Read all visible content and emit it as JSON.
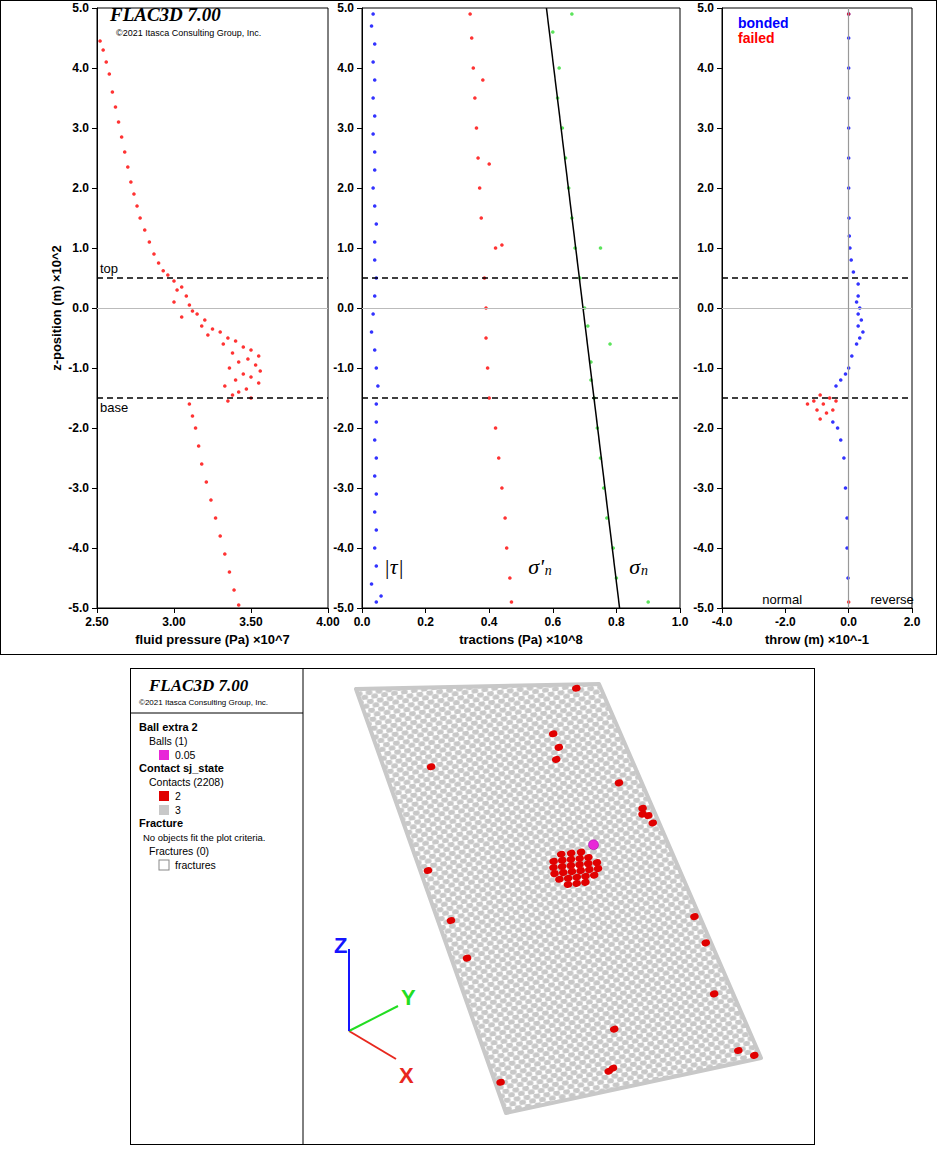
{
  "header": {
    "title": "FLAC3D 7.00",
    "copyright": "©2021 Itasca Consulting Group, Inc."
  },
  "chart_data": [
    {
      "type": "scatter",
      "xlabel": "fluid pressure (Pa) ×10^7",
      "ylabel": "z-position (m) ×10^2",
      "xlim": [
        2.5,
        4.0
      ],
      "xticks": [
        {
          "value": 2.5,
          "label": "2.50"
        },
        {
          "value": 3.0,
          "label": "3.00"
        },
        {
          "value": 3.5,
          "label": "3.50"
        },
        {
          "value": 4.0,
          "label": "4.00"
        }
      ],
      "ylim": [
        -5,
        5
      ],
      "yticks": [
        {
          "value": -5,
          "label": "-5.0"
        },
        {
          "value": -4,
          "label": "-4.0"
        },
        {
          "value": -3,
          "label": "-3.0"
        },
        {
          "value": -2,
          "label": "-2.0"
        },
        {
          "value": -1,
          "label": "-1.0"
        },
        {
          "value": 0,
          "label": "0.0"
        },
        {
          "value": 1,
          "label": "1.0"
        },
        {
          "value": 2,
          "label": "2.0"
        },
        {
          "value": 3,
          "label": "3.0"
        },
        {
          "value": 4,
          "label": "4.0"
        },
        {
          "value": 5,
          "label": "5.0"
        }
      ],
      "grid": false,
      "markers": [
        {
          "value": 0.5,
          "label": "top"
        },
        {
          "value": -1.5,
          "label": "base"
        }
      ],
      "hlines": [
        0
      ],
      "series": [
        {
          "color": "#ff0000",
          "marker": "circle",
          "x": [
            2.52,
            2.54,
            2.56,
            2.58,
            2.6,
            2.62,
            2.64,
            2.66,
            2.68,
            2.7,
            2.72,
            2.74,
            2.76,
            2.78,
            2.81,
            2.84,
            2.87,
            2.9,
            2.93,
            2.96,
            3.0,
            3.02,
            3.05,
            3.08,
            3.0,
            3.1,
            3.12,
            3.15,
            3.05,
            3.2,
            3.18,
            3.25,
            3.3,
            3.22,
            3.35,
            3.4,
            3.32,
            3.45,
            3.5,
            3.38,
            3.55,
            3.48,
            3.42,
            3.53,
            3.36,
            3.56,
            3.45,
            3.5,
            3.4,
            3.55,
            3.33,
            3.47,
            3.42,
            3.38,
            3.5,
            3.35,
            3.1,
            3.12,
            3.14,
            3.16,
            3.18,
            3.21,
            3.24,
            3.27,
            3.3,
            3.33,
            3.36,
            3.39,
            3.42
          ],
          "values": [
            4.45,
            4.3,
            4.1,
            3.9,
            3.6,
            3.35,
            3.1,
            2.85,
            2.6,
            2.35,
            2.1,
            1.9,
            1.7,
            1.5,
            1.3,
            1.1,
            0.9,
            0.75,
            0.62,
            0.55,
            0.45,
            0.3,
            0.35,
            0.2,
            0.1,
            0.05,
            -0.05,
            -0.1,
            -0.15,
            -0.2,
            -0.3,
            -0.35,
            -0.4,
            -0.45,
            -0.5,
            -0.55,
            -0.6,
            -0.65,
            -0.7,
            -0.75,
            -0.8,
            -0.85,
            -0.9,
            -0.95,
            -1.0,
            -1.05,
            -1.1,
            -1.15,
            -1.2,
            -1.25,
            -1.3,
            -1.35,
            -1.4,
            -1.45,
            -1.5,
            -1.55,
            -1.6,
            -1.8,
            -2.0,
            -2.3,
            -2.6,
            -2.9,
            -3.2,
            -3.5,
            -3.8,
            -4.1,
            -4.4,
            -4.7,
            -4.95
          ]
        }
      ]
    },
    {
      "type": "scatter",
      "xlabel": "tractions (Pa) ×10^8",
      "xlim": [
        0,
        1.0
      ],
      "xticks": [
        {
          "value": 0,
          "label": "0.0"
        },
        {
          "value": 0.2,
          "label": "0.2"
        },
        {
          "value": 0.4,
          "label": "0.4"
        },
        {
          "value": 0.6,
          "label": "0.6"
        },
        {
          "value": 0.8,
          "label": "0.8"
        },
        {
          "value": 1.0,
          "label": "1.0"
        }
      ],
      "ylim": [
        -5,
        5
      ],
      "yticks": [
        {
          "value": -5,
          "label": "-5.0"
        },
        {
          "value": -4,
          "label": "-4.0"
        },
        {
          "value": -3,
          "label": "-3.0"
        },
        {
          "value": -2,
          "label": "-2.0"
        },
        {
          "value": -1,
          "label": "-1.0"
        },
        {
          "value": 0,
          "label": "0.0"
        },
        {
          "value": 1,
          "label": "1.0"
        },
        {
          "value": 2,
          "label": "2.0"
        },
        {
          "value": 3,
          "label": "3.0"
        },
        {
          "value": 4,
          "label": "4.0"
        },
        {
          "value": 5,
          "label": "5.0"
        }
      ],
      "grid": false,
      "markers": [
        {
          "value": 0.5
        },
        {
          "value": -1.5
        }
      ],
      "hlines": [
        0
      ],
      "annotations": [
        {
          "text": "|τ|",
          "x": 0.1,
          "y": -4.3
        },
        {
          "text": "σ'",
          "subscript": "n",
          "x": 0.56,
          "y": -4.3
        },
        {
          "text": "σ",
          "subscript": "n",
          "x": 0.87,
          "y": -4.3
        }
      ],
      "series": [
        {
          "color": "#0000ff",
          "marker": "circle",
          "x": [
            0.035,
            0.03,
            0.04,
            0.035,
            0.04,
            0.035,
            0.04,
            0.035,
            0.04,
            0.04,
            0.035,
            0.04,
            0.045,
            0.04,
            0.04,
            0.045,
            0.04,
            0.035,
            0.03,
            0.04,
            0.045,
            0.05,
            0.045,
            0.045,
            0.04,
            0.045,
            0.04,
            0.045,
            0.04,
            0.045,
            0.04,
            0.045,
            0.03,
            0.06,
            0.045
          ],
          "values": [
            4.9,
            4.7,
            4.4,
            4.1,
            3.8,
            3.5,
            3.2,
            2.9,
            2.6,
            2.3,
            2.0,
            1.7,
            1.4,
            1.1,
            0.8,
            0.5,
            0.2,
            -0.1,
            -0.4,
            -0.7,
            -1.0,
            -1.3,
            -1.6,
            -1.9,
            -2.2,
            -2.5,
            -2.8,
            -3.1,
            -3.4,
            -3.7,
            -4.0,
            -4.3,
            -4.6,
            -4.8,
            -4.9
          ]
        },
        {
          "color": "#ff0000",
          "marker": "circle",
          "x": [
            0.34,
            0.345,
            0.35,
            0.38,
            0.355,
            0.36,
            0.365,
            0.4,
            0.37,
            0.375,
            0.44,
            0.42,
            0.385,
            0.39,
            0.39,
            0.395,
            0.4,
            0.42,
            0.43,
            0.44,
            0.45,
            0.455,
            0.465,
            0.47
          ],
          "values": [
            4.9,
            4.5,
            4.0,
            3.8,
            3.5,
            3.0,
            2.5,
            2.4,
            2.0,
            1.5,
            1.05,
            1.0,
            0.5,
            0.0,
            -0.5,
            -1.0,
            -1.5,
            -2.0,
            -2.5,
            -3.0,
            -3.5,
            -4.0,
            -4.5,
            -4.9
          ]
        },
        {
          "color": "#33dd33",
          "marker": "circle",
          "x": [
            0.66,
            0.6,
            0.62,
            0.615,
            0.63,
            0.64,
            0.65,
            0.66,
            0.75,
            0.67,
            0.685,
            0.7,
            0.71,
            0.78,
            0.72,
            0.72,
            0.73,
            0.74,
            0.75,
            0.76,
            0.77,
            0.79,
            0.8,
            0.9
          ],
          "values": [
            4.9,
            4.6,
            4.0,
            3.5,
            3.0,
            2.5,
            2.0,
            1.5,
            1.0,
            1.0,
            0.5,
            0.0,
            -0.3,
            -0.6,
            -0.9,
            -1.2,
            -1.5,
            -2.0,
            -2.5,
            -3.0,
            -3.5,
            -4.0,
            -4.5,
            -4.9
          ]
        },
        {
          "type": "line",
          "color": "#000000",
          "line_style": "solid",
          "x": [
            0.58,
            0.81
          ],
          "values": [
            5,
            -5
          ]
        }
      ]
    },
    {
      "type": "scatter",
      "xlabel": "throw (m) ×10^-1",
      "xlim": [
        -4.0,
        2.0
      ],
      "xticks": [
        {
          "value": -4,
          "label": "-4.0"
        },
        {
          "value": -2,
          "label": "-2.0"
        },
        {
          "value": 0,
          "label": "0.0"
        },
        {
          "value": 2,
          "label": "2.0"
        }
      ],
      "ylim": [
        -5,
        5
      ],
      "yticks": [
        {
          "value": -5,
          "label": "-5.0"
        },
        {
          "value": -4,
          "label": "-4.0"
        },
        {
          "value": -3,
          "label": "-3.0"
        },
        {
          "value": -2,
          "label": "-2.0"
        },
        {
          "value": -1,
          "label": "-1.0"
        },
        {
          "value": 0,
          "label": "0.0"
        },
        {
          "value": 1,
          "label": "1.0"
        },
        {
          "value": 2,
          "label": "2.0"
        },
        {
          "value": 3,
          "label": "3.0"
        },
        {
          "value": 4,
          "label": "4.0"
        },
        {
          "value": 5,
          "label": "5.0"
        }
      ],
      "grid": false,
      "legend": "top-left",
      "markers": [
        {
          "value": 0.5
        },
        {
          "value": -1.5
        }
      ],
      "hlines": [
        0
      ],
      "vlines": [
        0
      ],
      "annotations": [
        {
          "text": "normal",
          "x": -2.1,
          "y": -4.85
        },
        {
          "text": "reverse",
          "x": 1.37,
          "y": -4.85
        }
      ],
      "series": [
        {
          "name": "bonded",
          "color": "#0000ff",
          "marker": "circle",
          "x": [
            0,
            0,
            0,
            0,
            0,
            0,
            0,
            0.01,
            0.02,
            0.04,
            0.08,
            0.15,
            0.3,
            0.3,
            0.25,
            0.35,
            0.3,
            0.4,
            0.3,
            0.45,
            0.35,
            0.25,
            0.1,
            0.0,
            -0.1,
            -0.25,
            -0.4,
            -0.5,
            -0.35,
            -0.25,
            -0.15,
            -0.1,
            -0.05,
            -0.05,
            -0.02
          ],
          "values": [
            4.9,
            4.5,
            4.0,
            3.5,
            3.0,
            2.5,
            2.0,
            1.5,
            1.2,
            1.0,
            0.8,
            0.6,
            0.4,
            0.2,
            0.1,
            0.0,
            -0.1,
            -0.2,
            -0.3,
            -0.4,
            -0.5,
            -0.6,
            -0.8,
            -1.0,
            -1.1,
            -1.2,
            -1.3,
            -1.9,
            -2.0,
            -2.2,
            -2.5,
            -3.0,
            -3.5,
            -4.0,
            -4.5
          ]
        },
        {
          "name": "failed",
          "color": "#ff0000",
          "marker": "circle",
          "x": [
            0,
            -0.9,
            -1.1,
            -1.3,
            -0.8,
            -0.6,
            -1.0,
            -0.7,
            -0.5,
            -0.9,
            -0.4,
            0
          ],
          "values": [
            4.9,
            -1.45,
            -1.55,
            -1.6,
            -1.6,
            -1.5,
            -1.7,
            -1.75,
            -1.7,
            -1.85,
            -1.55,
            -4.9
          ]
        }
      ]
    }
  ],
  "contact_plot": {
    "header": {
      "title": "FLAC3D 7.00",
      "copyright": "©2021 Itasca Consulting Group, Inc."
    },
    "legend": [
      {
        "title": "Ball extra 2",
        "subtitle": "Balls (1)",
        "items": [
          {
            "label": "0.05",
            "color": "#e826d8"
          }
        ]
      },
      {
        "title": "Contact sj_state",
        "subtitle": "Contacts (2208)",
        "items": [
          {
            "label": "2",
            "color": "#e00000"
          },
          {
            "label": "3",
            "color": "#c8c8c8"
          }
        ]
      },
      {
        "title": "Fracture",
        "note": "No objects fit the plot criteria.",
        "subtitle": "Fractures (0)",
        "items": [
          {
            "label": "fractures",
            "color": "#ffffff"
          }
        ]
      }
    ],
    "axes": [
      {
        "label": "X",
        "color": "#e8281e"
      },
      {
        "label": "Y",
        "color": "#22dd22"
      },
      {
        "label": "Z",
        "color": "#1515ff"
      }
    ],
    "ball": {
      "u": 0.71,
      "v": 0.41
    },
    "failed_contacts": {
      "u": [
        0.57,
        0.61,
        0.65,
        0.53,
        0.565,
        0.6,
        0.635,
        0.67,
        0.52,
        0.555,
        0.59,
        0.625,
        0.66,
        0.695,
        0.515,
        0.55,
        0.585,
        0.62,
        0.655,
        0.69,
        0.525,
        0.56,
        0.595,
        0.63,
        0.665,
        0.55,
        0.585,
        0.62,
        0.9,
        0.19,
        0.73,
        0.73,
        0.7,
        0.91,
        0.96,
        0.97,
        0.975,
        0.95,
        0.03,
        0.05,
        0.06,
        0.98,
        0.98,
        0.93,
        0.93,
        0.98,
        0.51,
        0.43,
        0.45,
        0.02
      ],
      "v": [
        0.425,
        0.425,
        0.425,
        0.44,
        0.44,
        0.44,
        0.44,
        0.44,
        0.455,
        0.455,
        0.455,
        0.455,
        0.455,
        0.455,
        0.47,
        0.47,
        0.47,
        0.47,
        0.47,
        0.47,
        0.485,
        0.485,
        0.485,
        0.485,
        0.485,
        0.5,
        0.5,
        0.5,
        0.01,
        0.19,
        0.125,
        0.16,
        0.19,
        0.26,
        0.33,
        0.35,
        0.37,
        0.345,
        0.43,
        0.55,
        0.64,
        0.62,
        0.69,
        0.82,
        0.97,
        0.99,
        0.86,
        0.955,
        0.95,
        0.93
      ]
    }
  }
}
